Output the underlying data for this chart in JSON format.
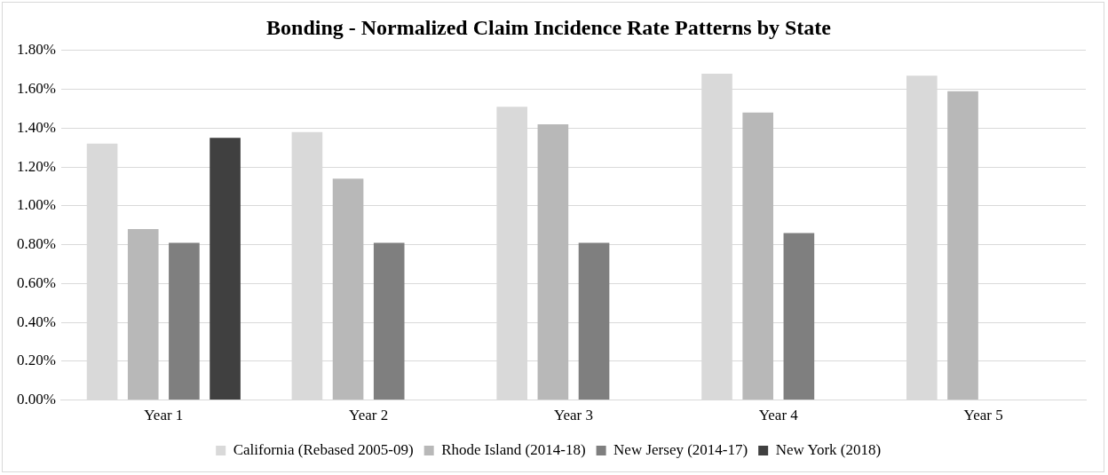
{
  "chart_data": {
    "type": "bar",
    "title": "Bonding - Normalized Claim Incidence Rate Patterns by State",
    "categories": [
      "Year 1",
      "Year 2",
      "Year 3",
      "Year 4",
      "Year 5"
    ],
    "series": [
      {
        "name": "California (Rebased 2005-09)",
        "color": "#d9d9d9",
        "values": [
          1.32,
          1.38,
          1.51,
          1.68,
          1.67
        ]
      },
      {
        "name": "Rhode Island (2014-18)",
        "color": "#b8b8b8",
        "values": [
          0.88,
          1.14,
          1.42,
          1.48,
          1.59
        ]
      },
      {
        "name": "New Jersey (2014-17)",
        "color": "#7f7f7f",
        "values": [
          0.81,
          0.81,
          0.81,
          0.86,
          null
        ]
      },
      {
        "name": "New York (2018)",
        "color": "#404040",
        "values": [
          1.35,
          null,
          null,
          null,
          null
        ]
      }
    ],
    "ylim": [
      0,
      1.8
    ],
    "yticks": [
      {
        "value": 0,
        "label": "0.00%"
      },
      {
        "value": 0.2,
        "label": "0.20%"
      },
      {
        "value": 0.4,
        "label": "0.40%"
      },
      {
        "value": 0.6,
        "label": "0.60%"
      },
      {
        "value": 0.8,
        "label": "0.80%"
      },
      {
        "value": 1.0,
        "label": "1.00%"
      },
      {
        "value": 1.2,
        "label": "1.20%"
      },
      {
        "value": 1.4,
        "label": "1.40%"
      },
      {
        "value": 1.6,
        "label": "1.60%"
      },
      {
        "value": 1.8,
        "label": "1.80%"
      }
    ],
    "grid": "y",
    "legend": "bottom"
  }
}
